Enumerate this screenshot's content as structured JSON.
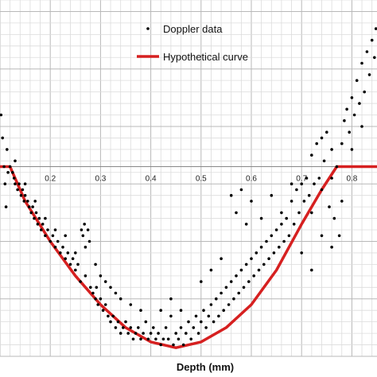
{
  "chart_data": {
    "type": "scatter",
    "xlabel": "Depth (mm)",
    "ylabel": "",
    "xlim": [
      0.1,
      0.85
    ],
    "ylim": [
      -0.33,
      0.29
    ],
    "x_ticks": [
      0.2,
      0.3,
      0.4,
      0.5,
      0.6,
      0.7,
      0.8
    ],
    "x_tick_labels": [
      "0.2",
      "0.3",
      "0.4",
      "0.5",
      "0.6",
      "0.7",
      "0.8"
    ],
    "grid": true,
    "legend_position": "top",
    "legend": [
      "Doppler data",
      "Hypothetical curve"
    ],
    "series": [
      {
        "name": "Doppler data",
        "kind": "scatter",
        "color": "#000000",
        "points": [
          [
            0.102,
            0.09
          ],
          [
            0.105,
            0.05
          ],
          [
            0.108,
            0.0
          ],
          [
            0.11,
            -0.03
          ],
          [
            0.112,
            -0.07
          ],
          [
            0.114,
            0.03
          ],
          [
            0.116,
            -0.01
          ],
          [
            0.12,
            0.0
          ],
          [
            0.125,
            -0.01
          ],
          [
            0.128,
            -0.02
          ],
          [
            0.13,
            -0.03
          ],
          [
            0.135,
            -0.04
          ],
          [
            0.138,
            -0.03
          ],
          [
            0.142,
            -0.05
          ],
          [
            0.145,
            -0.04
          ],
          [
            0.148,
            -0.06
          ],
          [
            0.15,
            -0.05
          ],
          [
            0.155,
            -0.06
          ],
          [
            0.158,
            -0.07
          ],
          [
            0.162,
            -0.08
          ],
          [
            0.165,
            -0.07
          ],
          [
            0.168,
            -0.09
          ],
          [
            0.172,
            -0.08
          ],
          [
            0.175,
            -0.1
          ],
          [
            0.178,
            -0.09
          ],
          [
            0.182,
            -0.11
          ],
          [
            0.185,
            -0.1
          ],
          [
            0.19,
            -0.12
          ],
          [
            0.195,
            -0.11
          ],
          [
            0.2,
            -0.13
          ],
          [
            0.205,
            -0.12
          ],
          [
            0.21,
            -0.14
          ],
          [
            0.215,
            -0.13
          ],
          [
            0.22,
            -0.15
          ],
          [
            0.225,
            -0.14
          ],
          [
            0.23,
            -0.16
          ],
          [
            0.235,
            -0.15
          ],
          [
            0.24,
            -0.17
          ],
          [
            0.245,
            -0.16
          ],
          [
            0.25,
            -0.18
          ],
          [
            0.255,
            -0.17
          ],
          [
            0.26,
            -0.2
          ],
          [
            0.262,
            -0.11
          ],
          [
            0.265,
            -0.12
          ],
          [
            0.268,
            -0.1
          ],
          [
            0.27,
            -0.19
          ],
          [
            0.275,
            -0.11
          ],
          [
            0.278,
            -0.13
          ],
          [
            0.28,
            -0.21
          ],
          [
            0.285,
            -0.22
          ],
          [
            0.29,
            -0.23
          ],
          [
            0.292,
            -0.21
          ],
          [
            0.295,
            -0.24
          ],
          [
            0.3,
            -0.23
          ],
          [
            0.305,
            -0.25
          ],
          [
            0.31,
            -0.24
          ],
          [
            0.315,
            -0.26
          ],
          [
            0.32,
            -0.27
          ],
          [
            0.325,
            -0.26
          ],
          [
            0.33,
            -0.28
          ],
          [
            0.335,
            -0.27
          ],
          [
            0.34,
            -0.29
          ],
          [
            0.345,
            -0.28
          ],
          [
            0.35,
            -0.27
          ],
          [
            0.355,
            -0.29
          ],
          [
            0.36,
            -0.28
          ],
          [
            0.365,
            -0.3
          ],
          [
            0.37,
            -0.29
          ],
          [
            0.375,
            -0.28
          ],
          [
            0.38,
            -0.3
          ],
          [
            0.385,
            -0.29
          ],
          [
            0.39,
            -0.27
          ],
          [
            0.395,
            -0.3
          ],
          [
            0.4,
            -0.29
          ],
          [
            0.405,
            -0.28
          ],
          [
            0.41,
            -0.3
          ],
          [
            0.415,
            -0.29
          ],
          [
            0.42,
            -0.31
          ],
          [
            0.425,
            -0.3
          ],
          [
            0.43,
            -0.28
          ],
          [
            0.435,
            -0.3
          ],
          [
            0.44,
            -0.26
          ],
          [
            0.445,
            -0.31
          ],
          [
            0.45,
            -0.29
          ],
          [
            0.455,
            -0.3
          ],
          [
            0.46,
            -0.28
          ],
          [
            0.465,
            -0.31
          ],
          [
            0.47,
            -0.29
          ],
          [
            0.475,
            -0.27
          ],
          [
            0.48,
            -0.3
          ],
          [
            0.485,
            -0.28
          ],
          [
            0.49,
            -0.26
          ],
          [
            0.495,
            -0.29
          ],
          [
            0.5,
            -0.27
          ],
          [
            0.505,
            -0.25
          ],
          [
            0.51,
            -0.28
          ],
          [
            0.515,
            -0.26
          ],
          [
            0.52,
            -0.24
          ],
          [
            0.525,
            -0.27
          ],
          [
            0.53,
            -0.23
          ],
          [
            0.535,
            -0.26
          ],
          [
            0.54,
            -0.22
          ],
          [
            0.545,
            -0.25
          ],
          [
            0.55,
            -0.21
          ],
          [
            0.555,
            -0.24
          ],
          [
            0.56,
            -0.2
          ],
          [
            0.565,
            -0.23
          ],
          [
            0.57,
            -0.19
          ],
          [
            0.575,
            -0.22
          ],
          [
            0.58,
            -0.18
          ],
          [
            0.585,
            -0.21
          ],
          [
            0.59,
            -0.17
          ],
          [
            0.595,
            -0.2
          ],
          [
            0.6,
            -0.16
          ],
          [
            0.605,
            -0.19
          ],
          [
            0.61,
            -0.15
          ],
          [
            0.615,
            -0.18
          ],
          [
            0.62,
            -0.14
          ],
          [
            0.625,
            -0.17
          ],
          [
            0.63,
            -0.13
          ],
          [
            0.635,
            -0.16
          ],
          [
            0.64,
            -0.12
          ],
          [
            0.645,
            -0.15
          ],
          [
            0.65,
            -0.11
          ],
          [
            0.655,
            -0.14
          ],
          [
            0.66,
            -0.1
          ],
          [
            0.665,
            -0.13
          ],
          [
            0.67,
            -0.09
          ],
          [
            0.675,
            -0.12
          ],
          [
            0.68,
            -0.06
          ],
          [
            0.685,
            -0.1
          ],
          [
            0.69,
            -0.04
          ],
          [
            0.695,
            -0.08
          ],
          [
            0.7,
            -0.03
          ],
          [
            0.705,
            -0.06
          ],
          [
            0.71,
            -0.02
          ],
          [
            0.715,
            -0.05
          ],
          [
            0.72,
            0.02
          ],
          [
            0.725,
            -0.03
          ],
          [
            0.73,
            0.04
          ],
          [
            0.735,
            -0.02
          ],
          [
            0.74,
            0.05
          ],
          [
            0.745,
            0.01
          ],
          [
            0.75,
            0.06
          ],
          [
            0.755,
            -0.07
          ],
          [
            0.76,
            0.03
          ],
          [
            0.765,
            -0.09
          ],
          [
            0.77,
            0.0
          ],
          [
            0.775,
            -0.12
          ],
          [
            0.78,
            0.04
          ],
          [
            0.785,
            0.08
          ],
          [
            0.79,
            0.1
          ],
          [
            0.795,
            0.06
          ],
          [
            0.8,
            0.12
          ],
          [
            0.805,
            0.09
          ],
          [
            0.81,
            0.15
          ],
          [
            0.815,
            0.11
          ],
          [
            0.82,
            0.18
          ],
          [
            0.825,
            0.13
          ],
          [
            0.83,
            0.2
          ],
          [
            0.835,
            0.16
          ],
          [
            0.84,
            0.22
          ],
          [
            0.845,
            0.19
          ],
          [
            0.848,
            0.24
          ],
          [
            0.56,
            -0.05
          ],
          [
            0.57,
            -0.08
          ],
          [
            0.58,
            -0.04
          ],
          [
            0.59,
            -0.1
          ],
          [
            0.6,
            -0.06
          ],
          [
            0.62,
            -0.09
          ],
          [
            0.64,
            -0.05
          ],
          [
            0.66,
            -0.08
          ],
          [
            0.68,
            -0.03
          ],
          [
            0.5,
            -0.2
          ],
          [
            0.52,
            -0.18
          ],
          [
            0.54,
            -0.16
          ],
          [
            0.46,
            -0.25
          ],
          [
            0.44,
            -0.23
          ],
          [
            0.42,
            -0.25
          ],
          [
            0.38,
            -0.25
          ],
          [
            0.36,
            -0.24
          ],
          [
            0.34,
            -0.23
          ],
          [
            0.33,
            -0.22
          ],
          [
            0.32,
            -0.21
          ],
          [
            0.31,
            -0.2
          ],
          [
            0.3,
            -0.19
          ],
          [
            0.29,
            -0.17
          ],
          [
            0.27,
            -0.14
          ],
          [
            0.25,
            -0.15
          ],
          [
            0.23,
            -0.12
          ],
          [
            0.21,
            -0.11
          ],
          [
            0.19,
            -0.09
          ],
          [
            0.17,
            -0.06
          ],
          [
            0.15,
            -0.03
          ],
          [
            0.13,
            0.01
          ],
          [
            0.72,
            -0.08
          ],
          [
            0.74,
            -0.04
          ],
          [
            0.76,
            -0.02
          ],
          [
            0.78,
            -0.06
          ],
          [
            0.8,
            0.03
          ],
          [
            0.82,
            0.07
          ],
          [
            0.7,
            -0.15
          ],
          [
            0.72,
            -0.18
          ],
          [
            0.74,
            -0.12
          ],
          [
            0.76,
            -0.14
          ]
        ]
      },
      {
        "name": "Hypothetical curve",
        "kind": "line",
        "color": "#d62020",
        "points": [
          [
            0.1,
            0.0
          ],
          [
            0.12,
            0.0
          ],
          [
            0.15,
            -0.06
          ],
          [
            0.2,
            -0.13
          ],
          [
            0.25,
            -0.19
          ],
          [
            0.3,
            -0.24
          ],
          [
            0.35,
            -0.28
          ],
          [
            0.4,
            -0.305
          ],
          [
            0.45,
            -0.315
          ],
          [
            0.5,
            -0.305
          ],
          [
            0.55,
            -0.28
          ],
          [
            0.6,
            -0.24
          ],
          [
            0.65,
            -0.18
          ],
          [
            0.7,
            -0.1
          ],
          [
            0.74,
            -0.04
          ],
          [
            0.77,
            0.0
          ],
          [
            0.8,
            0.0
          ],
          [
            0.85,
            0.0
          ]
        ]
      }
    ]
  }
}
